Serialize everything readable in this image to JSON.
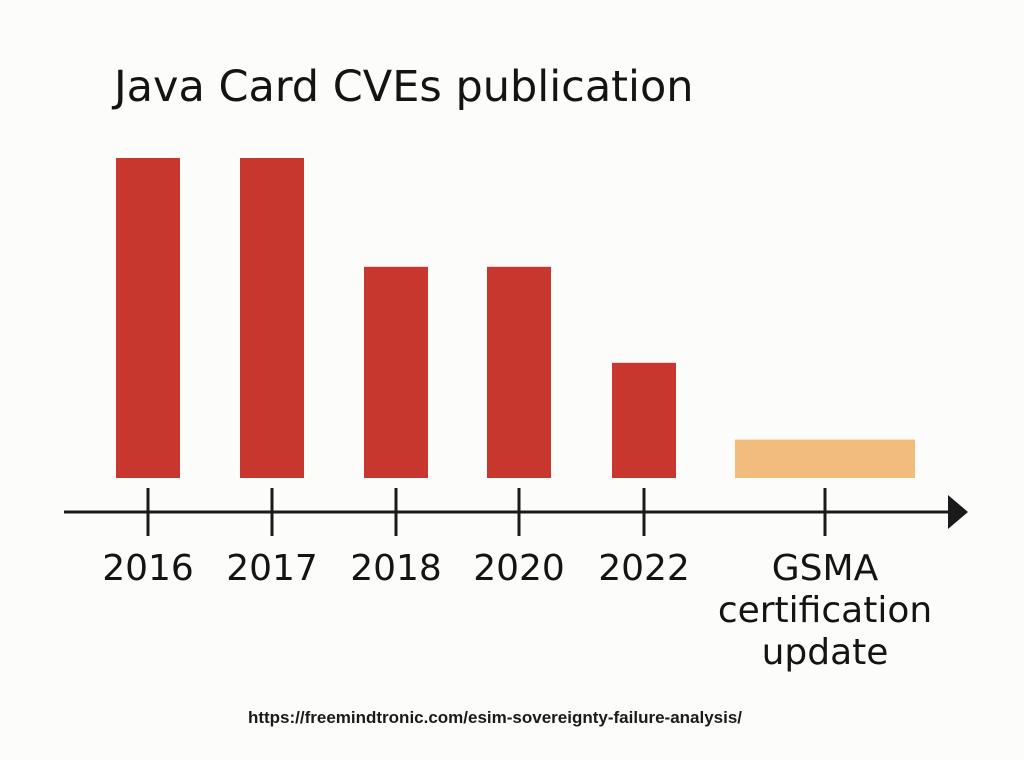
{
  "chart_data": {
    "type": "bar",
    "title": "Java Card CVEs publication",
    "categories": [
      "2016",
      "2017",
      "2018",
      "2020",
      "2022",
      "GSMA certification update"
    ],
    "values": [
      10,
      10,
      6.6,
      6.6,
      3.6,
      1.2
    ],
    "ylim": [
      0,
      10
    ],
    "xlabel": "",
    "ylabel": "",
    "grid": false,
    "legend": "none",
    "colors": {
      "bar": "#c8372d",
      "highlight": "#f2bd7c",
      "axis": "#1a1a1a"
    },
    "highlight_category": "GSMA certification update"
  },
  "source_url": "https://freemindtronic.com/esim-sovereignty-failure-analysis/"
}
